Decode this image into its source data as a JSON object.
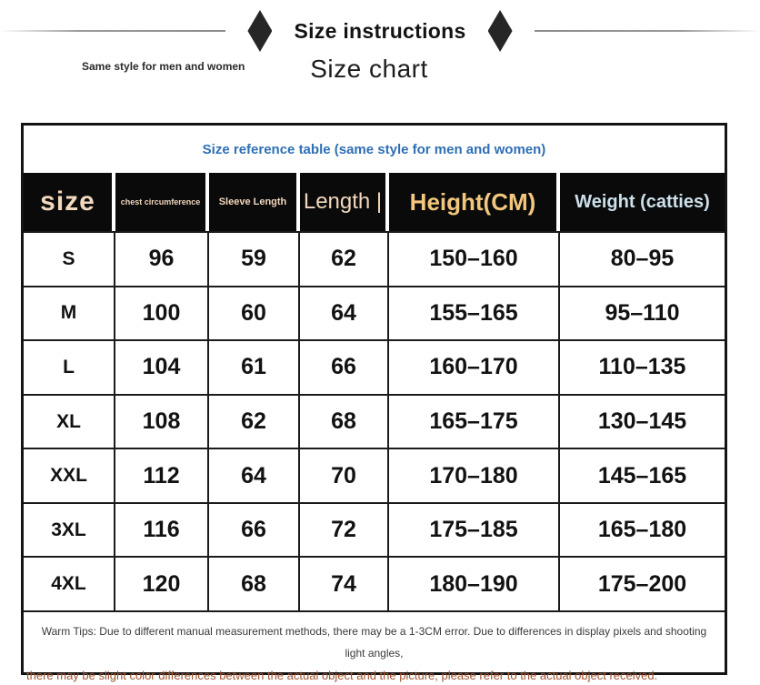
{
  "banner": {
    "title": "Size instructions"
  },
  "header": {
    "subtitle_left": "Same style for men and women",
    "page_title": "Size chart"
  },
  "chart_data": {
    "type": "table",
    "title": "Size chart",
    "caption": "Size reference table (same style for men and women)",
    "columns": [
      "size",
      "chest circumference",
      "Sleeve Length",
      "Length |",
      "Height(CM)",
      "Weight (catties)"
    ],
    "rows": [
      [
        "S",
        "96",
        "59",
        "62",
        "150–160",
        "80–95"
      ],
      [
        "M",
        "100",
        "60",
        "64",
        "155–165",
        "95–110"
      ],
      [
        "L",
        "104",
        "61",
        "66",
        "160–170",
        "110–135"
      ],
      [
        "XL",
        "108",
        "62",
        "68",
        "165–175",
        "130–145"
      ],
      [
        "XXL",
        "112",
        "64",
        "70",
        "170–180",
        "145–165"
      ],
      [
        "3XL",
        "116",
        "66",
        "72",
        "175–185",
        "165–180"
      ],
      [
        "4XL",
        "120",
        "68",
        "74",
        "180–190",
        "175–200"
      ]
    ]
  },
  "tips": {
    "line1": "Warm Tips: Due to different manual measurement methods, there may be a 1-3CM error. Due to differences in display pixels and shooting light angles,",
    "line2": "there may be slight color differences between the actual object and the picture, please refer to the actual object received."
  },
  "colors": {
    "caption_blue": "#2f6eb4",
    "header_cream": "#f2d8bd",
    "header_gold": "#f2c77d",
    "header_lightblue": "#cde0ea",
    "tips_red": "#a0512e",
    "header_bg": "#0a0a0a"
  }
}
